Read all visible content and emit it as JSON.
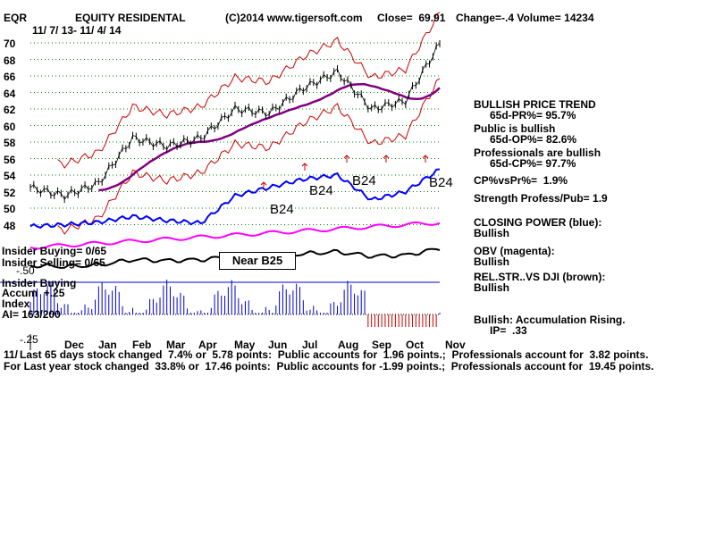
{
  "header": {
    "symbol": "EQR",
    "company": "EQUITY RESIDENTAL",
    "copyright": "(C)2014 www.tigersoft.com",
    "close": "Close=  69.91",
    "change_volume": "Change=-.4 Volume= 14234",
    "date_range": "11/ 7/ 13- 11/ 4/ 14"
  },
  "y_ticks": [
    "70",
    "68",
    "66",
    "64",
    "62",
    "60",
    "58",
    "56",
    "54",
    "52",
    "50",
    "48"
  ],
  "x_ticks": [
    "Dec",
    "Jan",
    "Feb",
    "Mar",
    "Apr",
    "May",
    "Jun",
    "Jul",
    "Aug",
    "Sep",
    "Oct",
    "Nov"
  ],
  "left_labels": {
    "insider_buying_top": "Insider Buying= 0/65",
    "insider_selling": "Insider Selling= 0/65",
    "minus_50": "-.50",
    "insider_buying": "Insider Buying",
    "accum_index": "Accum  +.25",
    "index": "Index",
    "ai": "AI= 163/200",
    "minus_25": "-.25",
    "plus_25": "+.25"
  },
  "signals": {
    "b24_1": "B24",
    "b24_2": "B24",
    "b24_3": "B24",
    "b24_4": "B24",
    "near_b25": "Near B25"
  },
  "right_panel": {
    "trend_title": "BULLISH PRICE TREND",
    "pr": "65d-PR%= 95.7%",
    "public": "Public is bullish",
    "op": "65d-OP%= 82.6%",
    "pros": "Professionals are bullish",
    "cp": "65d-CP%= 97.7%",
    "cpvspr": "CP%vsPr%=  1.9%",
    "strength": "Strength Profess/Pub= 1.9",
    "closing_power": "CLOSING POWER (blue):",
    "closing_power_val": "Bullish",
    "obv": "OBV (magenta):",
    "obv_val": "Bullish",
    "relstr": "REL.STR..VS DJI (brown):",
    "relstr_val": "Bullish",
    "accum": "Bullish: Accumulation Rising.",
    "ip": "IP=  .33"
  },
  "footer": {
    "line1_prefix": "11/",
    "line1": "Last 65 days stock changed  7.4% or  5.78 points:  Public accounts for  1.96 points.;  Professionals account for  3.82 points.",
    "line2": "For Last year stock changed  33.8% or  17.46 points:  Public accounts for -1.99 points.;  Professionals account for  19.45 points."
  },
  "colors": {
    "price": "#000000",
    "bands": "#cc0000",
    "ma": "#800080",
    "closing_power": "#0000ff",
    "obv": "#ff00ff",
    "relstr": "#000000",
    "grid": "#008000",
    "accum_pos": "#0000cc",
    "accum_neg": "#cc0000"
  },
  "chart_data": {
    "type": "line",
    "title": "EQUITY RESIDENTAL",
    "ylabel": "",
    "xlabel": "",
    "ylim": [
      47,
      71
    ],
    "x": [
      "Nov",
      "Dec",
      "Jan",
      "Feb",
      "Mar",
      "Apr",
      "May",
      "Jun",
      "Jul",
      "Aug",
      "Sep",
      "Oct",
      "Nov"
    ],
    "series": [
      {
        "name": "Price",
        "values": [
          52.5,
          51.5,
          53,
          58.5,
          57.5,
          58.5,
          62,
          61.5,
          64.5,
          66.5,
          62,
          63,
          69.9
        ]
      },
      {
        "name": "CLOSING POWER (blue)",
        "values": [
          47.8,
          48,
          48.3,
          49,
          48.5,
          48.2,
          51.5,
          52.5,
          53.5,
          54,
          51,
          52,
          54.7
        ]
      }
    ]
  }
}
